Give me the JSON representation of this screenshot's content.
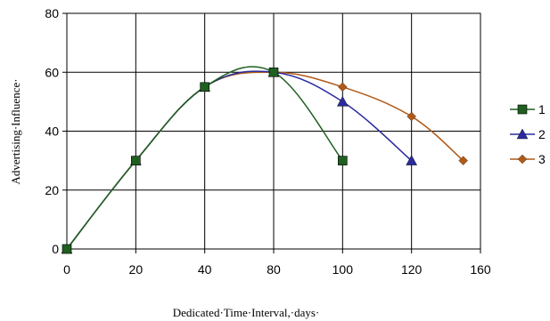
{
  "chart_data": {
    "type": "line",
    "xlabel": "Dedicated·Time·Interval,·days·",
    "ylabel": "Advertising·Influence·",
    "xlim": [
      0,
      160
    ],
    "ylim": [
      0,
      80
    ],
    "x_ticks": [
      "0",
      "20",
      "40",
      "80",
      "100",
      "120",
      "160"
    ],
    "y_ticks": [
      "0",
      "20",
      "40",
      "60",
      "80"
    ],
    "grid": true,
    "legend_position": "right",
    "series": [
      {
        "name": "1",
        "color": "#1f5f1f",
        "marker": "square",
        "x": [
          "0",
          "20",
          "40",
          "80",
          "100"
        ],
        "y": [
          0,
          30,
          55,
          60,
          30
        ]
      },
      {
        "name": "2",
        "color": "#2b2b9e",
        "marker": "triangle",
        "x": [
          "0",
          "20",
          "40",
          "80",
          "100",
          "120"
        ],
        "y": [
          0,
          30,
          55,
          60,
          50,
          30
        ]
      },
      {
        "name": "3",
        "color": "#b05a18",
        "marker": "diamond",
        "x": [
          "0",
          "20",
          "40",
          "80",
          "100",
          "120",
          "150"
        ],
        "y": [
          0,
          30,
          55,
          60,
          55,
          45,
          30
        ]
      }
    ]
  }
}
